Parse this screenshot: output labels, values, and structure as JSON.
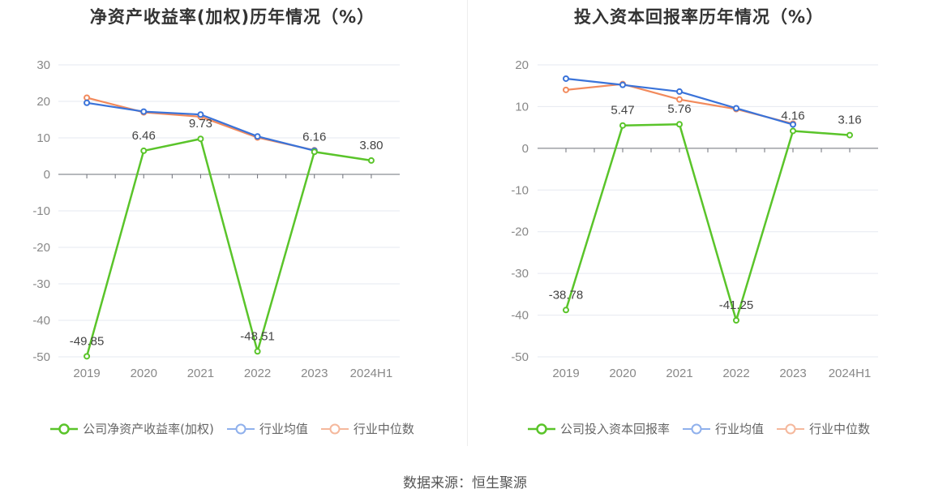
{
  "source": "数据来源：恒生聚源",
  "colors": {
    "company": "#5ac42a",
    "average": "#3a73d9",
    "median": "#f28a5c"
  },
  "chart_data": [
    {
      "type": "line",
      "title": "净资产收益率(加权)历年情况（%）",
      "categories": [
        "2019",
        "2020",
        "2021",
        "2022",
        "2023",
        "2024H1"
      ],
      "ylim": [
        -50,
        30
      ],
      "yticks": [
        30,
        20,
        10,
        0,
        -10,
        -20,
        -30,
        -40,
        -50
      ],
      "grid": true,
      "legend_position": "bottom",
      "series": [
        {
          "name": "公司净资产收益率(加权)",
          "role": "company",
          "values": [
            -49.85,
            6.46,
            9.73,
            -48.51,
            6.16,
            3.8
          ],
          "labels": [
            "-49.85",
            "6.46",
            "9.73",
            "-48.51",
            "6.16",
            "3.80"
          ]
        },
        {
          "name": "行业均值",
          "role": "average",
          "values": [
            19.6,
            17.2,
            16.4,
            10.4,
            6.5,
            null
          ]
        },
        {
          "name": "行业中位数",
          "role": "median",
          "values": [
            21.0,
            17.0,
            15.8,
            10.1,
            6.6,
            null
          ]
        }
      ]
    },
    {
      "type": "line",
      "title": "投入资本回报率历年情况（%）",
      "categories": [
        "2019",
        "2020",
        "2021",
        "2022",
        "2023",
        "2024H1"
      ],
      "ylim": [
        -50,
        20
      ],
      "yticks": [
        20,
        10,
        0,
        -10,
        -20,
        -30,
        -40,
        -50
      ],
      "grid": true,
      "legend_position": "bottom",
      "series": [
        {
          "name": "公司投入资本回报率",
          "role": "company",
          "values": [
            -38.78,
            5.47,
            5.76,
            -41.25,
            4.16,
            3.16
          ],
          "labels": [
            "-38.78",
            "5.47",
            "5.76",
            "-41.25",
            "4.16",
            "3.16"
          ]
        },
        {
          "name": "行业均值",
          "role": "average",
          "values": [
            16.7,
            15.2,
            13.6,
            9.6,
            5.7,
            null
          ]
        },
        {
          "name": "行业中位数",
          "role": "median",
          "values": [
            14.0,
            15.4,
            11.7,
            9.4,
            5.9,
            null
          ]
        }
      ]
    }
  ]
}
